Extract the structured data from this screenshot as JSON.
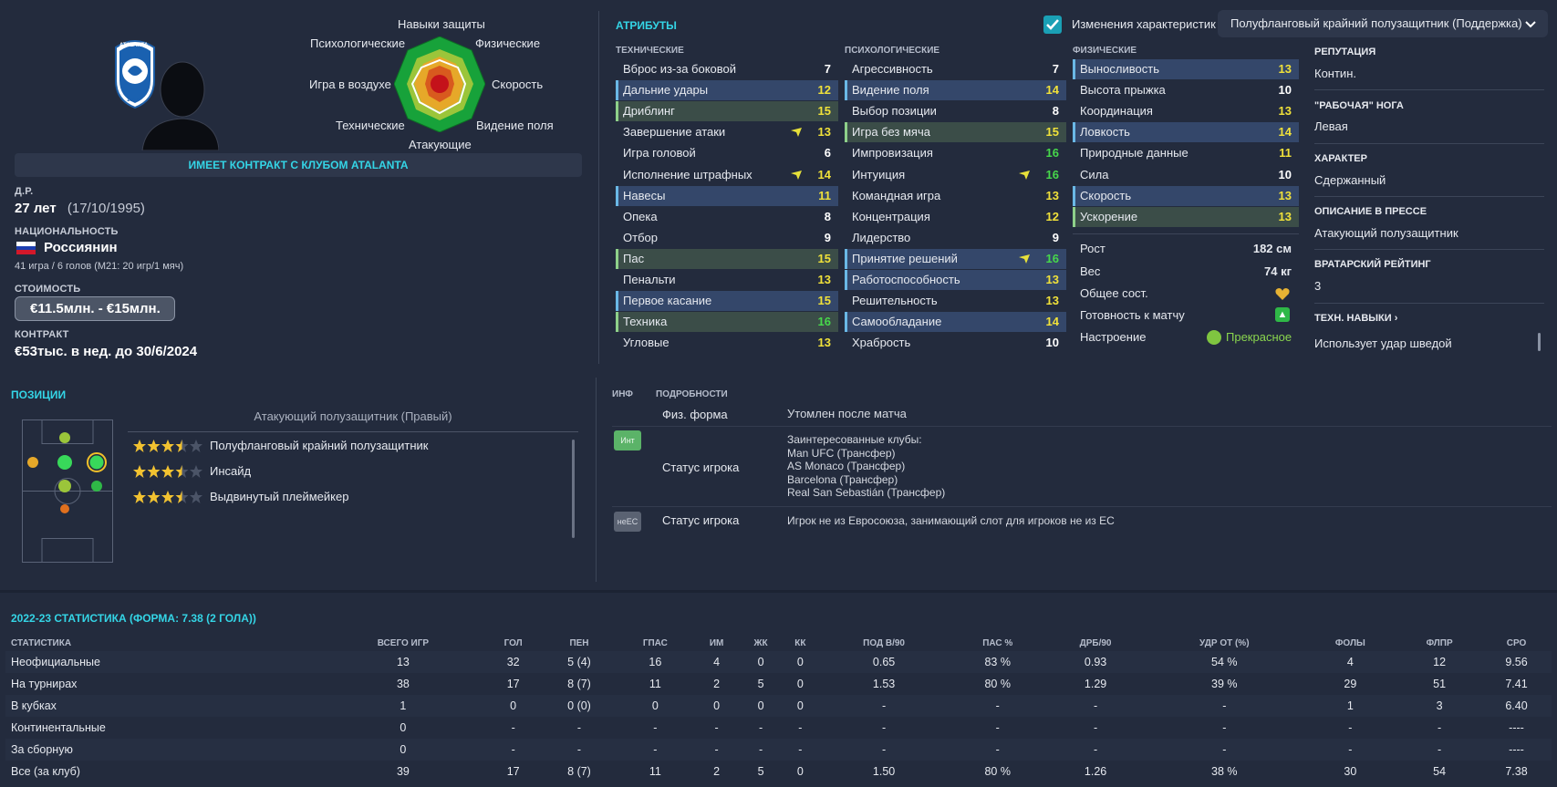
{
  "profile": {
    "contract_banner": "ИМЕЕТ КОНТРАКТ С КЛУБОМ ATALANTA",
    "club_badge_text": "ATALANTA",
    "club_badge_year": "1907",
    "dob_label": "Д.Р.",
    "age": "27 лет",
    "dob": "(17/10/1995)",
    "nationality_label": "НАЦИОНАЛЬНОСТЬ",
    "nationality": "Россиянин",
    "caps": "41 игра / 6 голов (М21: 20 игр/1 мяч)",
    "value_label": "СТОИМОСТЬ",
    "value": "€11.5млн. - €15млн.",
    "contract_label": "КОНТРАКТ",
    "contract": "€53тыс. в нед. до 30/6/2024"
  },
  "radar": {
    "labels": {
      "top": "Навыки защиты",
      "top_right": "Физические",
      "right": "Скорость",
      "bottom_right": "Видение поля",
      "bottom": "Атакующие",
      "bottom_left": "Технические",
      "left": "Игра в воздухе",
      "top_left": "Психологические"
    }
  },
  "attributes": {
    "title": "АТРИБУТЫ",
    "toggle_label": "Изменения характеристик",
    "role_select": "Полуфланговый крайний полузащитник (Поддержка)",
    "technical_header": "ТЕХНИЧЕСКИЕ",
    "mental_header": "ПСИХОЛОГИЧЕСКИЕ",
    "physical_header": "ФИЗИЧЕСКИЕ",
    "technical": [
      {
        "name": "Вброс из-за боковой",
        "value": "7"
      },
      {
        "name": "Дальние удары",
        "value": "12"
      },
      {
        "name": "Дриблинг",
        "value": "15"
      },
      {
        "name": "Завершение атаки",
        "value": "13"
      },
      {
        "name": "Игра головой",
        "value": "6"
      },
      {
        "name": "Исполнение штрафных",
        "value": "14"
      },
      {
        "name": "Навесы",
        "value": "11"
      },
      {
        "name": "Опека",
        "value": "8"
      },
      {
        "name": "Отбор",
        "value": "9"
      },
      {
        "name": "Пас",
        "value": "15"
      },
      {
        "name": "Пенальти",
        "value": "13"
      },
      {
        "name": "Первое касание",
        "value": "15"
      },
      {
        "name": "Техника",
        "value": "16"
      },
      {
        "name": "Угловые",
        "value": "13"
      }
    ],
    "mental": [
      {
        "name": "Агрессивность",
        "value": "7"
      },
      {
        "name": "Видение поля",
        "value": "14"
      },
      {
        "name": "Выбор позиции",
        "value": "8"
      },
      {
        "name": "Игра без мяча",
        "value": "15"
      },
      {
        "name": "Импровизация",
        "value": "16"
      },
      {
        "name": "Интуиция",
        "value": "16"
      },
      {
        "name": "Командная игра",
        "value": "13"
      },
      {
        "name": "Концентрация",
        "value": "12"
      },
      {
        "name": "Лидерство",
        "value": "9"
      },
      {
        "name": "Принятие решений",
        "value": "16"
      },
      {
        "name": "Работоспособность",
        "value": "13"
      },
      {
        "name": "Решительность",
        "value": "13"
      },
      {
        "name": "Самообладание",
        "value": "14"
      },
      {
        "name": "Храбрость",
        "value": "10"
      }
    ],
    "physical": [
      {
        "name": "Выносливость",
        "value": "13"
      },
      {
        "name": "Высота прыжка",
        "value": "10"
      },
      {
        "name": "Координация",
        "value": "13"
      },
      {
        "name": "Ловкость",
        "value": "14"
      },
      {
        "name": "Природные данные",
        "value": "11"
      },
      {
        "name": "Сила",
        "value": "10"
      },
      {
        "name": "Скорость",
        "value": "13"
      },
      {
        "name": "Ускорение",
        "value": "13"
      }
    ],
    "height_label": "Рост",
    "height": "182 см",
    "weight_label": "Вес",
    "weight": "74 кг",
    "condition_label": "Общее сост.",
    "fitness_label": "Готовность к матчу",
    "morale_label": "Настроение",
    "morale": "Прекрасное"
  },
  "side_info": {
    "reputation_label": "РЕПУТАЦИЯ",
    "reputation": "Контин.",
    "foot_label": "\"РАБОЧАЯ\" НОГА",
    "foot": "Левая",
    "personality_label": "ХАРАКТЕР",
    "personality": "Сдержанный",
    "media_label": "ОПИСАНИЕ В ПРЕССЕ",
    "media": "Атакующий полузащитник",
    "gk_label": "ВРАТАРСКИЙ РЕЙТИНГ",
    "gk": "3",
    "tech_label": "ТЕХН. НАВЫКИ",
    "tech": "Использует удар шведой"
  },
  "positions": {
    "title": "ПОЗИЦИИ",
    "main_position": "Атакующий полузащитник (Правый)",
    "roles": [
      {
        "name": "Полуфланговый крайний полузащитник",
        "rating": 3.5
      },
      {
        "name": "Инсайд",
        "rating": 3.5
      },
      {
        "name": "Выдвинутый плеймейкер",
        "rating": 3.5
      }
    ]
  },
  "details": {
    "info_header": "ИНФ",
    "details_header": "ПОДРОБНОСТИ",
    "fitness_label": "Физ. форма",
    "fitness_value": "Утомлен после матча",
    "tag_int": "Инт",
    "status_label": "Статус игрока",
    "interested_header": "Заинтересованные клубы:",
    "interested_clubs": [
      "Man UFC (Трансфер)",
      "AS Monaco (Трансфер)",
      "Barcelona (Трансфер)",
      "Real San Sebastián (Трансфер)"
    ],
    "tag_nonEU": "неЕС",
    "status_label_2": "Статус игрока",
    "nonEU_text": "Игрок не из Евросоюза, занимающий слот для игроков не из ЕС"
  },
  "stats": {
    "title": "2022-23 СТАТИСТИКА (ФОРМА: 7.38 (2 ГОЛА))",
    "headers": [
      "СТАТИСТИКА",
      "ВСЕГО ИГР",
      "ГОЛ",
      "ПЕН",
      "ГПАС",
      "ИМ",
      "ЖК",
      "КК",
      "ПОД В/90",
      "ПАС %",
      "ДРБ/90",
      "УДР ОТ (%)",
      "ФОЛЫ",
      "ФЛПР",
      "СРО"
    ],
    "rows": [
      [
        "Неофициальные",
        "13",
        "32",
        "5 (4)",
        "16",
        "4",
        "0",
        "0",
        "0.65",
        "83 %",
        "0.93",
        "54 %",
        "4",
        "12",
        "9.56"
      ],
      [
        "На турнирах",
        "38",
        "17",
        "8 (7)",
        "11",
        "2",
        "5",
        "0",
        "1.53",
        "80 %",
        "1.29",
        "39 %",
        "29",
        "51",
        "7.41"
      ],
      [
        "В кубках",
        "1",
        "0",
        "0 (0)",
        "0",
        "0",
        "0",
        "0",
        "-",
        "-",
        "-",
        "-",
        "1",
        "3",
        "6.40"
      ],
      [
        "Континентальные",
        "0",
        "-",
        "-",
        "-",
        "-",
        "-",
        "-",
        "-",
        "-",
        "-",
        "-",
        "-",
        "-",
        "----"
      ],
      [
        "За сборную",
        "0",
        "-",
        "-",
        "-",
        "-",
        "-",
        "-",
        "-",
        "-",
        "-",
        "-",
        "-",
        "-",
        "----"
      ],
      [
        "Все (за клуб)",
        "39",
        "17",
        "8 (7)",
        "11",
        "2",
        "5",
        "0",
        "1.50",
        "80 %",
        "1.26",
        "38 %",
        "30",
        "54",
        "7.38"
      ]
    ]
  }
}
